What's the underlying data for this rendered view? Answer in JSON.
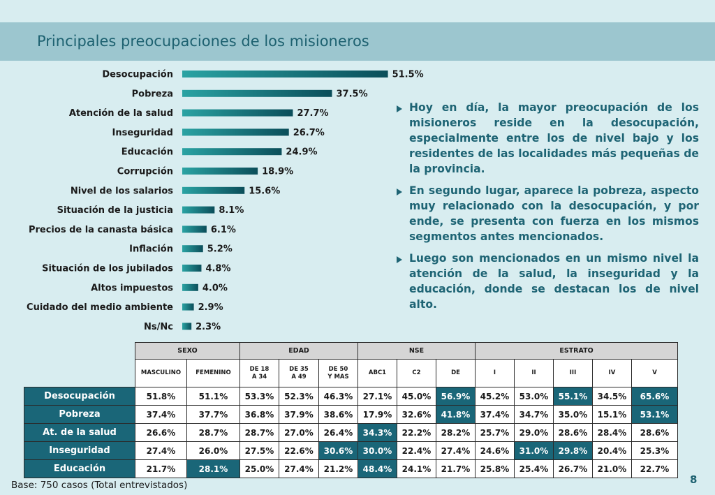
{
  "title": "Principales preocupaciones de los misioneros",
  "chart_data": {
    "type": "bar",
    "orientation": "horizontal",
    "categories": [
      "Desocupación",
      "Pobreza",
      "Atención de la salud",
      "Inseguridad",
      "Educación",
      "Corrupción",
      "Nivel de los salarios",
      "Situación de la justicia",
      "Precios de la canasta básica",
      "Inflación",
      "Situación de los jubilados",
      "Altos impuestos",
      "Cuidado del medio ambiente",
      "Ns/Nc"
    ],
    "values": [
      51.5,
      37.5,
      27.7,
      26.7,
      24.9,
      18.9,
      15.6,
      8.1,
      6.1,
      5.2,
      4.8,
      4.0,
      2.9,
      2.3
    ],
    "value_labels": [
      "51.5%",
      "37.5%",
      "27.7%",
      "26.7%",
      "24.9%",
      "18.9%",
      "15.6%",
      "8.1%",
      "6.1%",
      "5.2%",
      "4.8%",
      "4.0%",
      "2.9%",
      "2.3%"
    ],
    "bar_color_dark": "#0b4e5a",
    "bar_color_light": "#2aa3a3"
  },
  "bullets": [
    "Hoy en día, la mayor preocupación de los misioneros reside en la desocupación, especialmente entre los de nivel bajo y los residentes de las localidades más pequeñas de la provincia.",
    "En segundo lugar, aparece la pobreza, aspecto muy relacionado con la desocupación, y por ende, se presenta con fuerza en los mismos segmentos antes mencionados.",
    "Luego son mencionados en un mismo nivel la atención de la salud, la inseguridad y la educación, donde se destacan los de nivel alto."
  ],
  "table": {
    "groups": [
      {
        "label": "SEXO",
        "span": 2
      },
      {
        "label": "EDAD",
        "span": 3
      },
      {
        "label": "NSE",
        "span": 3
      },
      {
        "label": "ESTRATO",
        "span": 5
      }
    ],
    "columns": [
      "MASCULINO",
      "FEMENINO",
      "DE 18\nA 34",
      "DE 35\nA 49",
      "DE 50\nY MAS",
      "ABC1",
      "C2",
      "DE",
      "I",
      "II",
      "III",
      "IV",
      "V"
    ],
    "rows": [
      {
        "label": "Desocupación",
        "cells": [
          "51.8%",
          "51.1%",
          "53.3%",
          "52.3%",
          "46.3%",
          "27.1%",
          "45.0%",
          "56.9%",
          "45.2%",
          "53.0%",
          "55.1%",
          "34.5%",
          "65.6%"
        ],
        "highlight": [
          7,
          10,
          12
        ]
      },
      {
        "label": "Pobreza",
        "cells": [
          "37.4%",
          "37.7%",
          "36.8%",
          "37.9%",
          "38.6%",
          "17.9%",
          "32.6%",
          "41.8%",
          "37.4%",
          "34.7%",
          "35.0%",
          "15.1%",
          "53.1%"
        ],
        "highlight": [
          7,
          12
        ]
      },
      {
        "label": "At. de la salud",
        "cells": [
          "26.6%",
          "28.7%",
          "28.7%",
          "27.0%",
          "26.4%",
          "34.3%",
          "22.2%",
          "28.2%",
          "25.7%",
          "29.0%",
          "28.6%",
          "28.4%",
          "28.6%"
        ],
        "highlight": [
          5
        ]
      },
      {
        "label": "Inseguridad",
        "cells": [
          "27.4%",
          "26.0%",
          "27.5%",
          "22.6%",
          "30.6%",
          "30.0%",
          "22.4%",
          "27.4%",
          "24.6%",
          "31.0%",
          "29.8%",
          "20.4%",
          "25.3%"
        ],
        "highlight": [
          4,
          5,
          9,
          10
        ]
      },
      {
        "label": "Educación",
        "cells": [
          "21.7%",
          "28.1%",
          "25.0%",
          "27.4%",
          "21.2%",
          "48.4%",
          "24.1%",
          "21.7%",
          "25.8%",
          "25.4%",
          "26.7%",
          "21.0%",
          "22.7%"
        ],
        "highlight": [
          1,
          5
        ]
      }
    ]
  },
  "footer": {
    "base": "Base: 750 casos (Total entrevistados)",
    "page": "8"
  }
}
